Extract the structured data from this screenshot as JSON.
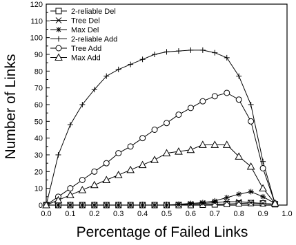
{
  "chart_data": {
    "type": "line",
    "xlabel": "Percentage of Failed Links",
    "ylabel": "Number of Links",
    "xlim": [
      0.0,
      1.0
    ],
    "ylim": [
      0,
      120
    ],
    "xticks": [
      "0.0",
      "0.1",
      "0.2",
      "0.3",
      "0.4",
      "0.5",
      "0.6",
      "0.7",
      "0.8",
      "0.9",
      "1.0"
    ],
    "yticks": [
      "0",
      "10",
      "20",
      "30",
      "40",
      "50",
      "60",
      "70",
      "80",
      "90",
      "100",
      "110",
      "120"
    ],
    "legend_position": "top-left",
    "grid": false,
    "x": [
      0.0,
      0.05,
      0.1,
      0.15,
      0.2,
      0.25,
      0.3,
      0.35,
      0.4,
      0.45,
      0.5,
      0.55,
      0.6,
      0.65,
      0.7,
      0.75,
      0.8,
      0.85,
      0.9,
      0.95
    ],
    "series": [
      {
        "name": "2-reliable Del",
        "marker": "square",
        "values": [
          0,
          0,
          0,
          0,
          0,
          0,
          0,
          0,
          0,
          0,
          0,
          0,
          0,
          0.2,
          0.4,
          0.6,
          1,
          1.2,
          1,
          0.5
        ]
      },
      {
        "name": "Tree Del",
        "marker": "x",
        "values": [
          0,
          0,
          0,
          0,
          0,
          0,
          0,
          0,
          0,
          0,
          0,
          0.3,
          0.5,
          1,
          1.5,
          2,
          2,
          1.5,
          1,
          0.5
        ]
      },
      {
        "name": "Max Del",
        "marker": "star",
        "values": [
          0,
          0,
          0,
          0,
          0,
          0,
          0,
          0,
          0,
          0,
          0,
          0.5,
          1,
          1.5,
          2.5,
          4.5,
          6.5,
          8,
          5,
          1
        ]
      },
      {
        "name": "2-reliable Add",
        "marker": "plus",
        "values": [
          0,
          30,
          48,
          60,
          69,
          77,
          81,
          84,
          87,
          90,
          91.5,
          92,
          92.5,
          92.5,
          91,
          88,
          77,
          60,
          26,
          1
        ]
      },
      {
        "name": "Tree Add",
        "marker": "circle",
        "values": [
          0,
          5,
          10,
          15,
          20,
          25,
          31,
          35,
          40,
          45,
          49,
          54,
          58,
          62,
          65,
          67,
          63,
          50,
          22,
          1
        ]
      },
      {
        "name": "Max Add",
        "marker": "triangle",
        "values": [
          0,
          3,
          6,
          9,
          12,
          15,
          18,
          21,
          24,
          27,
          31,
          32,
          33,
          36,
          36,
          36,
          29,
          23,
          10,
          1
        ]
      }
    ]
  }
}
